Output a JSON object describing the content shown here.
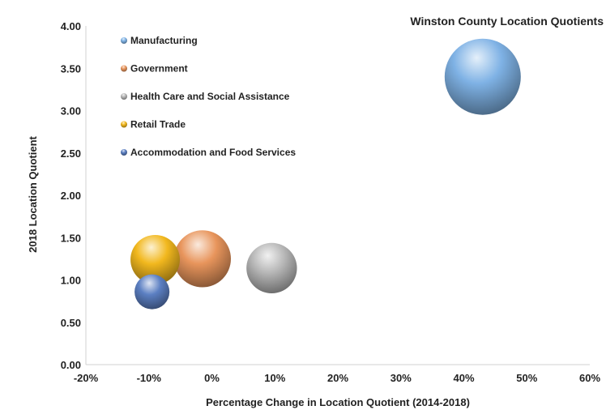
{
  "chart_data": {
    "type": "bubble",
    "title": "Winston County Location Quotients",
    "xlabel": "Percentage Change in Location Quotient (2014-2018)",
    "ylabel": "2018 Location Quotient",
    "xlim": [
      -0.2,
      0.6
    ],
    "ylim": [
      0,
      4
    ],
    "x_ticks": [
      "-20%",
      "-10%",
      "0%",
      "10%",
      "20%",
      "30%",
      "40%",
      "50%",
      "60%"
    ],
    "y_ticks": [
      "0.00",
      "0.50",
      "1.00",
      "1.50",
      "2.00",
      "2.50",
      "3.00",
      "3.50",
      "4.00"
    ],
    "grid": false,
    "legend_position": "top-left",
    "series": [
      {
        "name": "Manufacturing",
        "x": 0.43,
        "y": 3.4,
        "size": 1.0,
        "color": "#7fb2e5"
      },
      {
        "name": "Government",
        "x": -0.015,
        "y": 1.25,
        "size": 0.56,
        "color": "#e8955c"
      },
      {
        "name": "Health Care and Social Assistance",
        "x": 0.095,
        "y": 1.14,
        "size": 0.44,
        "color": "#b8b8b8"
      },
      {
        "name": "Retail Trade",
        "x": -0.09,
        "y": 1.24,
        "size": 0.42,
        "color": "#f2b81e"
      },
      {
        "name": "Accommodation and Food Services",
        "x": -0.095,
        "y": 0.86,
        "size": 0.21,
        "color": "#5b7fc2"
      }
    ]
  }
}
